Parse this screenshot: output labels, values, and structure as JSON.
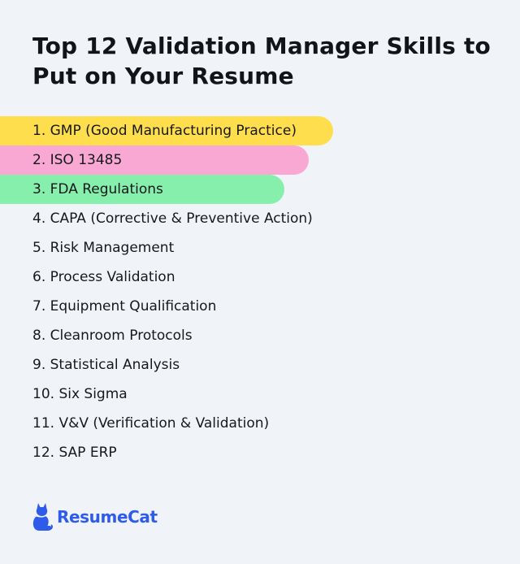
{
  "title": "Top 12 Validation Manager Skills to Put on Your Resume",
  "skills": [
    "1. GMP (Good Manufacturing Practice)",
    "2. ISO 13485",
    "3. FDA Regulations",
    "4. CAPA (Corrective & Preventive Action)",
    "5. Risk Management",
    "6. Process Validation",
    "7. Equipment Qualification",
    "8. Cleanroom Protocols",
    "9. Statistical Analysis",
    "10. Six Sigma",
    "11. V&V (Verification & Validation)",
    "12. SAP ERP"
  ],
  "highlight_colors": [
    "#ffde4d",
    "#f9a8d4",
    "#86efac"
  ],
  "brand": {
    "name": "ResumeCat",
    "icon": "cat-icon",
    "color": "#2f5bea"
  }
}
